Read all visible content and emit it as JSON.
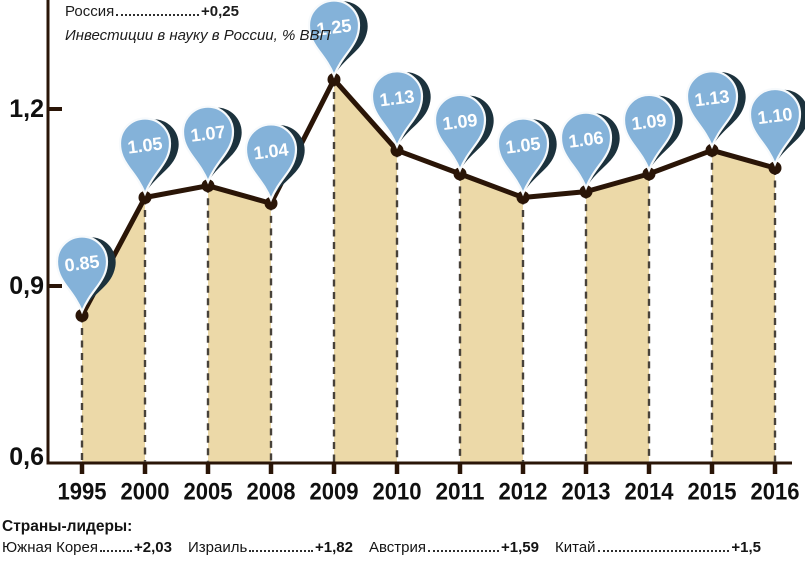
{
  "legend": {
    "country": "Россия",
    "value": "+0,25",
    "subtitle": "Инвестиции в науку в России, % ВВП"
  },
  "chart_data": {
    "type": "line",
    "title": "Инвестиции в науку в России, % ВВП",
    "x": [
      "1995",
      "2000",
      "2005",
      "2008",
      "2009",
      "2010",
      "2011",
      "2012",
      "2013",
      "2014",
      "2015",
      "2016"
    ],
    "values": [
      0.85,
      1.05,
      1.07,
      1.04,
      1.25,
      1.13,
      1.09,
      1.05,
      1.06,
      1.09,
      1.13,
      1.1
    ],
    "labels": [
      "0.85",
      "1.05",
      "1.07",
      "1.04",
      "1.25",
      "1.13",
      "1.09",
      "1.05",
      "1.06",
      "1.09",
      "1.13",
      "1.10"
    ],
    "yticks": [
      "1,2",
      "0,9",
      "0,6"
    ],
    "ytick_values": [
      1.2,
      0.9,
      0.6
    ],
    "ylim": [
      0.6,
      1.3
    ],
    "grid": "off",
    "legend_position": "top-left",
    "shaded_pairs": [
      [
        0,
        1
      ],
      [
        2,
        3
      ],
      [
        4,
        5
      ],
      [
        6,
        7
      ],
      [
        8,
        9
      ],
      [
        10,
        11
      ]
    ],
    "colors": {
      "balloon": "#84b2d9",
      "balloon_shadow": "#1c323d",
      "balloon_stroke": "#f7fafc",
      "area": "#ecd9a8",
      "line": "#2a1507",
      "dash": "#48423a",
      "axis": "#2a1507",
      "text": "#101010"
    }
  },
  "footer": {
    "title": "Страны-лидеры:",
    "items": [
      {
        "name": "Южная Корея",
        "value": "+2,03"
      },
      {
        "name": "Израиль",
        "value": "+1,82"
      },
      {
        "name": "Австрия",
        "value": "+1,59"
      },
      {
        "name": "Китай",
        "value": "+1,5"
      }
    ]
  }
}
